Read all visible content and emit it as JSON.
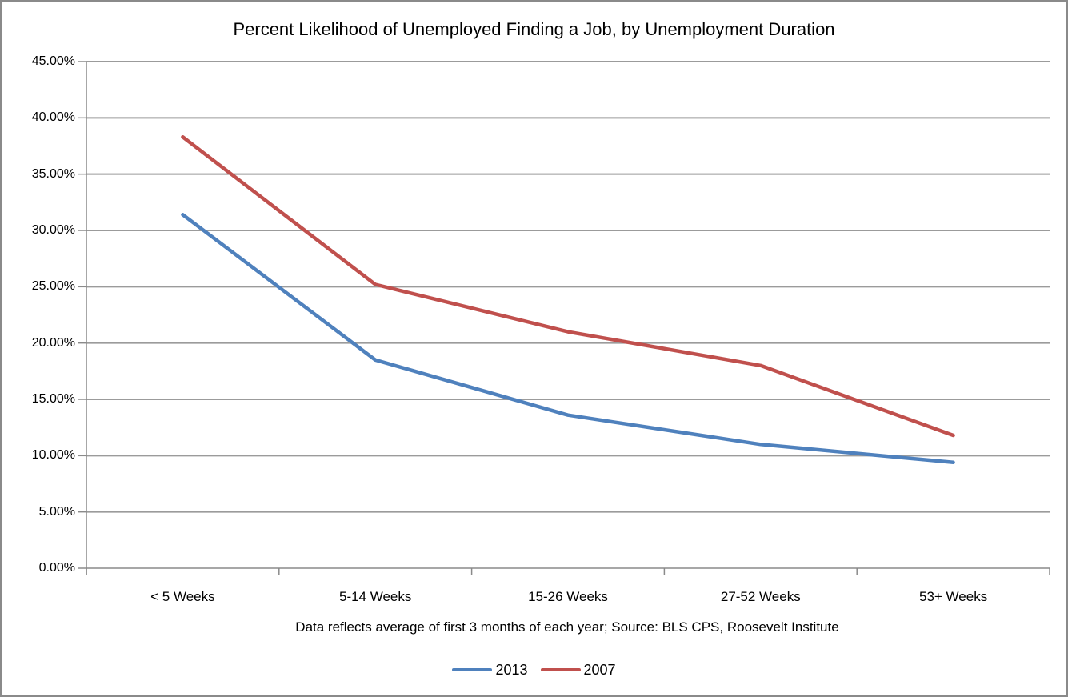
{
  "chart_data": {
    "type": "line",
    "title": "Percent Likelihood of Unemployed Finding a Job, by Unemployment Duration",
    "categories": [
      "< 5 Weeks",
      "5-14 Weeks",
      "15-26 Weeks",
      "27-52 Weeks",
      "53+ Weeks"
    ],
    "series": [
      {
        "name": "2013",
        "color": "#4F81BD",
        "values": [
          31.4,
          18.5,
          13.6,
          11.0,
          9.4
        ]
      },
      {
        "name": "2007",
        "color": "#C0504D",
        "values": [
          38.3,
          25.2,
          21.0,
          18.0,
          11.8
        ]
      }
    ],
    "xlabel": "",
    "ylabel": "",
    "ylim": [
      0,
      45
    ],
    "ytick_step": 5,
    "ytick_labels": [
      "0.00%",
      "5.00%",
      "10.00%",
      "15.00%",
      "20.00%",
      "25.00%",
      "30.00%",
      "35.00%",
      "40.00%",
      "45.00%"
    ],
    "grid": true,
    "legend_position": "bottom",
    "footnote": "Data reflects average of first 3 months of each year; Source: BLS CPS, Roosevelt Institute",
    "colors": {
      "background": "#ffffff",
      "gridline": "#9b9b9b",
      "axis": "#8a8a8a",
      "frame_border": "#8a8a8a",
      "text": "#000000"
    }
  }
}
